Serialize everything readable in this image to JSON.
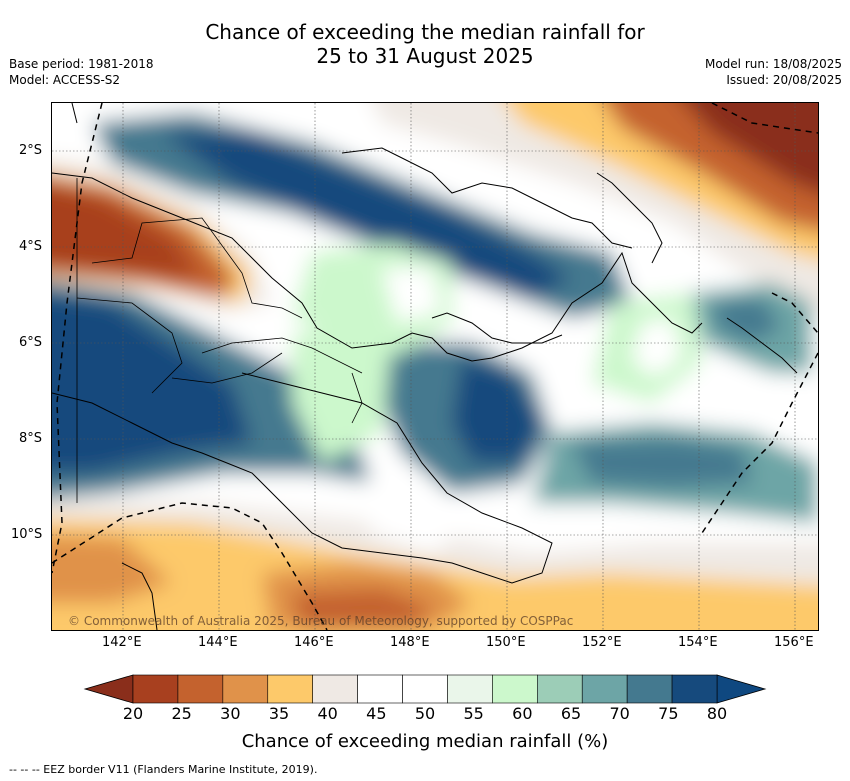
{
  "header": {
    "title_line1": "Chance of exceeding the median rainfall for",
    "title_line2": "25 to 31 August 2025",
    "base_period": "Base period: 1981-2018",
    "model": "Model: ACCESS-S2",
    "model_run": "Model run: 18/08/2025",
    "issued": "Issued: 20/08/2025"
  },
  "map": {
    "lat_labels": [
      "2°S",
      "4°S",
      "6°S",
      "8°S",
      "10°S"
    ],
    "lon_labels": [
      "142°E",
      "144°E",
      "146°E",
      "148°E",
      "150°E",
      "152°E",
      "154°E",
      "156°E"
    ],
    "copyright": "© Commonwealth of Australia 2025, Bureau of Meteorology, supported by COSPPac"
  },
  "colorbar": {
    "labels": [
      "20",
      "25",
      "30",
      "35",
      "40",
      "45",
      "50",
      "55",
      "60",
      "65",
      "70",
      "75",
      "80"
    ],
    "colors": [
      "#a8401f",
      "#c4622e",
      "#e0924a",
      "#fdc96a",
      "#efe9e4",
      "#ffffff",
      "#ffffff",
      "#eaf6ea",
      "#ccf8cc",
      "#9ccdb7",
      "#6da5a6",
      "#44798f",
      "#164a7d"
    ],
    "low_color": "#8a2e1b",
    "high_color": "#0f4880",
    "title": "Chance of exceeding median rainfall (%)"
  },
  "footnote": "--  --  -- EEZ border V11 (Flanders Marine Institute, 2019)."
}
